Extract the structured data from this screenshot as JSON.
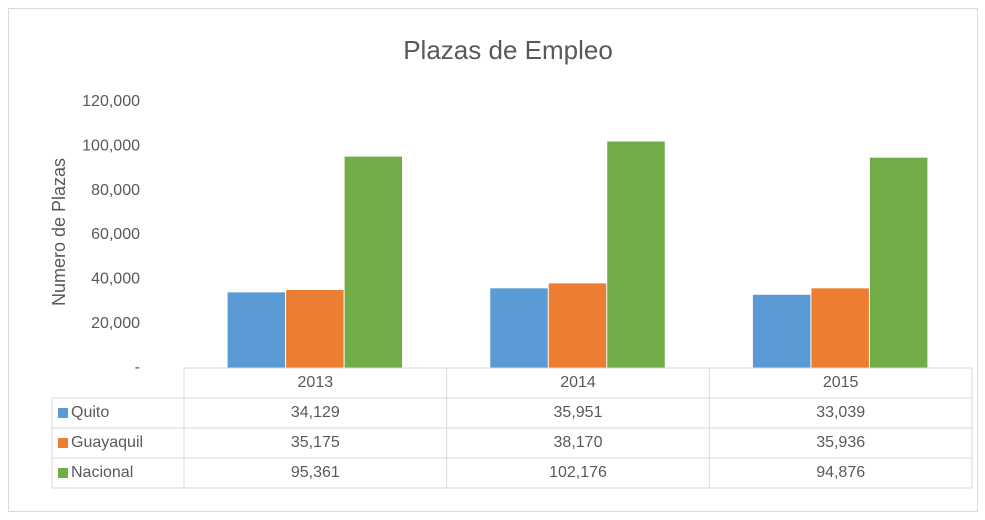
{
  "chart_data": {
    "type": "bar",
    "title": "Plazas de Empleo",
    "y_label": "Numero de Plazas",
    "categories": [
      "2013",
      "2014",
      "2015"
    ],
    "series": [
      {
        "name": "Quito",
        "color": "#5b9bd5",
        "values": [
          34129,
          35951,
          33039
        ],
        "value_labels": [
          "34,129",
          "35,951",
          "33,039"
        ]
      },
      {
        "name": "Guayaquil",
        "color": "#ed7d31",
        "values": [
          35175,
          38170,
          35936
        ],
        "value_labels": [
          "35,175",
          "38,170",
          "35,936"
        ]
      },
      {
        "name": "Nacional",
        "color": "#70ad47",
        "values": [
          95361,
          102176,
          94876
        ],
        "value_labels": [
          "95,361",
          "102,176",
          "94,876"
        ]
      }
    ],
    "ylim": [
      0,
      120000
    ],
    "yticks": [
      {
        "value": 0,
        "label": "-"
      },
      {
        "value": 20000,
        "label": "20,000"
      },
      {
        "value": 40000,
        "label": "40,000"
      },
      {
        "value": 60000,
        "label": "60,000"
      },
      {
        "value": 80000,
        "label": "80,000"
      },
      {
        "value": 100000,
        "label": "100,000"
      },
      {
        "value": 120000,
        "label": "120,000"
      }
    ],
    "grid": false
  }
}
